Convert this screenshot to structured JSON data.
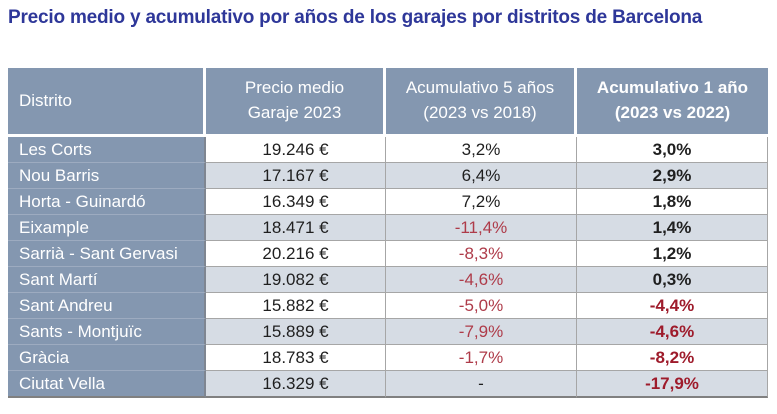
{
  "title": "Precio medio y acumulativo por años de los garajes por distritos de Barcelona",
  "colors": {
    "title": "#2E3799",
    "header_bg": "#8497B0",
    "header_text": "#FFFFFF",
    "row_bg": "#FFFFFF",
    "row_alt_bg": "#D6DCE4",
    "body_text": "#1F1F1F",
    "negative": "#AE3B49",
    "negative_bold": "#9E1B2B",
    "grid_border": "#A6A6A6",
    "outer_bottom_border": "#808080",
    "first_col_divider": "#7F8691",
    "district_row_divider": "#9DABC0"
  },
  "table": {
    "headers": {
      "distrito": "Distrito",
      "precio": "Precio medio\nGaraje 2023",
      "acum5": "Acumulativo 5 años\n(2023 vs 2018)",
      "acum1": "Acumulativo 1 año\n(2023 vs 2022)"
    },
    "rows": [
      {
        "distrito": "Les Corts",
        "precio": "19.246 €",
        "acum5": "3,2%",
        "acum1": "3,0%"
      },
      {
        "distrito": "Nou Barris",
        "precio": "17.167 €",
        "acum5": "6,4%",
        "acum1": "2,9%"
      },
      {
        "distrito": "Horta - Guinardó",
        "precio": "16.349 €",
        "acum5": "7,2%",
        "acum1": "1,8%"
      },
      {
        "distrito": "Eixample",
        "precio": "18.471 €",
        "acum5": "-11,4%",
        "acum1": "1,4%"
      },
      {
        "distrito": "Sarrià - Sant Gervasi",
        "precio": "20.216 €",
        "acum5": "-8,3%",
        "acum1": "1,2%"
      },
      {
        "distrito": "Sant Martí",
        "precio": "19.082 €",
        "acum5": "-4,6%",
        "acum1": "0,3%"
      },
      {
        "distrito": "Sant Andreu",
        "precio": "15.882 €",
        "acum5": "-5,0%",
        "acum1": "-4,4%"
      },
      {
        "distrito": "Sants - Montjuïc",
        "precio": "15.889 €",
        "acum5": "-7,9%",
        "acum1": "-4,6%"
      },
      {
        "distrito": "Gràcia",
        "precio": "18.783 €",
        "acum5": "-1,7%",
        "acum1": "-8,2%"
      },
      {
        "distrito": "Ciutat Vella",
        "precio": "16.329 €",
        "acum5": "-",
        "acum1": "-17,9%"
      }
    ]
  },
  "chart_data": {
    "type": "table",
    "title": "Precio medio y acumulativo por años de los garajes por distritos de Barcelona",
    "columns": [
      "Distrito",
      "Precio medio Garaje 2023",
      "Acumulativo 5 años (2023 vs 2018)",
      "Acumulativo 1 año (2023 vs 2022)"
    ],
    "categories": [
      "Les Corts",
      "Nou Barris",
      "Horta - Guinardó",
      "Eixample",
      "Sarrià - Sant Gervasi",
      "Sant Martí",
      "Sant Andreu",
      "Sants - Montjuïc",
      "Gràcia",
      "Ciutat Vella"
    ],
    "series": [
      {
        "name": "Precio medio Garaje 2023 (EUR)",
        "values": [
          19246,
          17167,
          16349,
          18471,
          20216,
          19082,
          15882,
          15889,
          18783,
          16329
        ]
      },
      {
        "name": "Acumulativo 5 años 2023 vs 2018 (%)",
        "values": [
          3.2,
          6.4,
          7.2,
          -11.4,
          -8.3,
          -4.6,
          -5.0,
          -7.9,
          -1.7,
          null
        ]
      },
      {
        "name": "Acumulativo 1 año 2023 vs 2022 (%)",
        "values": [
          3.0,
          2.9,
          1.8,
          1.4,
          1.2,
          0.3,
          -4.4,
          -4.6,
          -8.2,
          -17.9
        ]
      }
    ]
  }
}
